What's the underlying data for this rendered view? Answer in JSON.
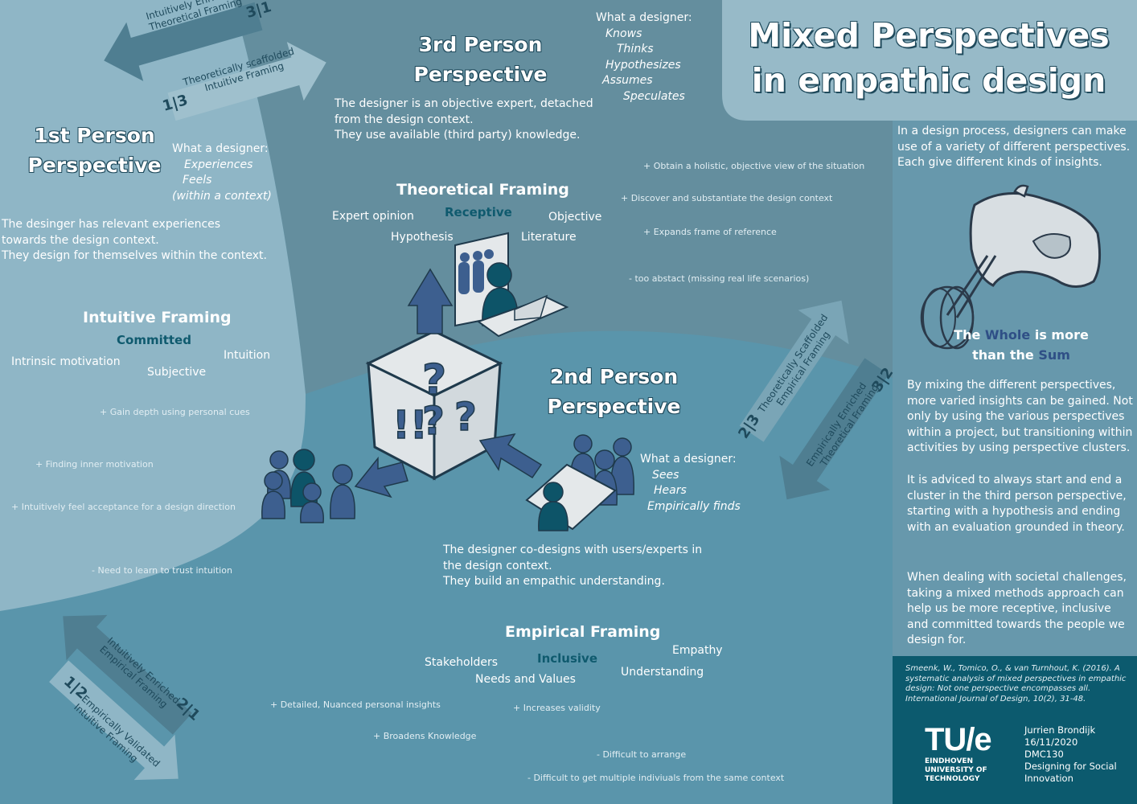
{
  "title": {
    "line1": "Mixed Perspectives",
    "line2": "in empathic design"
  },
  "intro": "In a design process, designers can make use of a variety of different perspectives. Each give different kinds of insights.",
  "mixer": {
    "the": "The",
    "whole": "Whole",
    "more": "is more",
    "than": "than the",
    "sum": "Sum"
  },
  "side_p1": "By mixing the different perspectives, more varied insights can be gained. Not only by using the various perspectives within a project, but transitioning within activities by using perspective clusters.",
  "side_p2": "It is adviced to always start and end a cluster in the third person perspective, starting with a hypothesis and ending with an evaluation grounded in theory.",
  "side_p3": "When dealing with societal challenges, taking a mixed methods approach can help us be more receptive, inclusive and committed towards the people we design for.",
  "reference": "Smeenk, W., Tomico, O., & van Turnhout, K. (2016). A systematic analysis of mixed perspectives in empathic design: Not one perspective encompasses all. International Journal of Design, 10(2), 31-48.",
  "logo": {
    "mark": "TU/e",
    "l1": "EINDHOVEN",
    "l2": "UNIVERSITY OF",
    "l3": "TECHNOLOGY"
  },
  "meta": {
    "author": "Jurrien Brondijk",
    "date": "16/11/2020",
    "course": "DMC130",
    "course_name": "Designing for Social Innovation"
  },
  "first": {
    "title_l1": "1st Person",
    "title_l2": "Perspective",
    "what_title": "What a designer:",
    "what": [
      "Experiences",
      "Feels",
      "(within a context)"
    ],
    "desc": [
      "The desinger has relevant experiences",
      "towards the design context.",
      "They design for themselves within the context."
    ]
  },
  "third": {
    "title_l1": "3rd Person",
    "title_l2": "Perspective",
    "what_title": "What a designer:",
    "what": [
      "Knows",
      "Thinks",
      "Hypothesizes",
      "Assumes",
      "Speculates"
    ],
    "desc": [
      "The designer is an objective expert, detached",
      "from the design context.",
      "They use available (third party) knowledge."
    ]
  },
  "second": {
    "title_l1": "2nd Person",
    "title_l2": "Perspective",
    "what_title": "What a designer:",
    "what": [
      "Sees",
      "Hears",
      "Empirically finds"
    ],
    "desc": [
      "The designer co-designs with users/experts in",
      "the design context.",
      "They build an empathic understanding."
    ]
  },
  "intuitive": {
    "title": "Intuitive Framing",
    "key": "Committed",
    "words": [
      "Intrinsic motivation",
      "Subjective",
      "Intuition"
    ],
    "points": [
      "+ Gain depth using personal cues",
      "+ Finding inner motivation",
      "+ Intuitively feel acceptance for a design direction",
      "- Need to learn to trust intuition"
    ]
  },
  "theoretical": {
    "title": "Theoretical Framing",
    "key": "Receptive",
    "words": [
      "Expert opinion",
      "Objective",
      "Hypothesis",
      "Literature"
    ],
    "points": [
      "+ Obtain a holistic, objective view of the situation",
      "+ Discover and substantiate the design context",
      "+ Expands frame of reference",
      "- too abstact (missing real life scenarios)"
    ]
  },
  "empirical": {
    "title": "Empirical Framing",
    "key": "Inclusive",
    "words": [
      "Stakeholders",
      "Empathy",
      "Needs and Values",
      "Understanding"
    ],
    "points": [
      "+ Detailed, Nuanced personal insights",
      "+ Increases validity",
      "+ Broadens Knowledge",
      "- Difficult to arrange",
      "- Difficult to get multiple indiviuals from the same context"
    ]
  },
  "arrows": {
    "a31": {
      "l1": "Intuitively Enriched",
      "l2": "Theoretical Framing",
      "num": "3|1"
    },
    "a13": {
      "l1": "Theoretically scaffolded",
      "l2": "Intuitive Framing",
      "num": "1|3"
    },
    "a23": {
      "l1": "Theoretically Scaffolded",
      "l2": "Empirical Framing",
      "num": "2|3"
    },
    "a32": {
      "l1": "Empirically Enriched",
      "l2": "Theoretical Framing",
      "num": "3|2"
    },
    "a21": {
      "l1": "Intuitively Enriched",
      "l2": "Empirical Framing",
      "num": "2|1"
    },
    "a12": {
      "l1": "Empirically Validated",
      "l2": "Intuitive Framing",
      "num": "1|2"
    }
  },
  "colors": {
    "bg": "#5a95ab",
    "third_zone": "#648e9e",
    "first_zone": "#8fb6c6",
    "second_zone": "#5a95ab",
    "side": "#6798ac",
    "side_dark": "#0c5a6e",
    "accent": "#0f5a6e",
    "figure": "#3d5f8f",
    "figure_dark": "#0d5468"
  }
}
